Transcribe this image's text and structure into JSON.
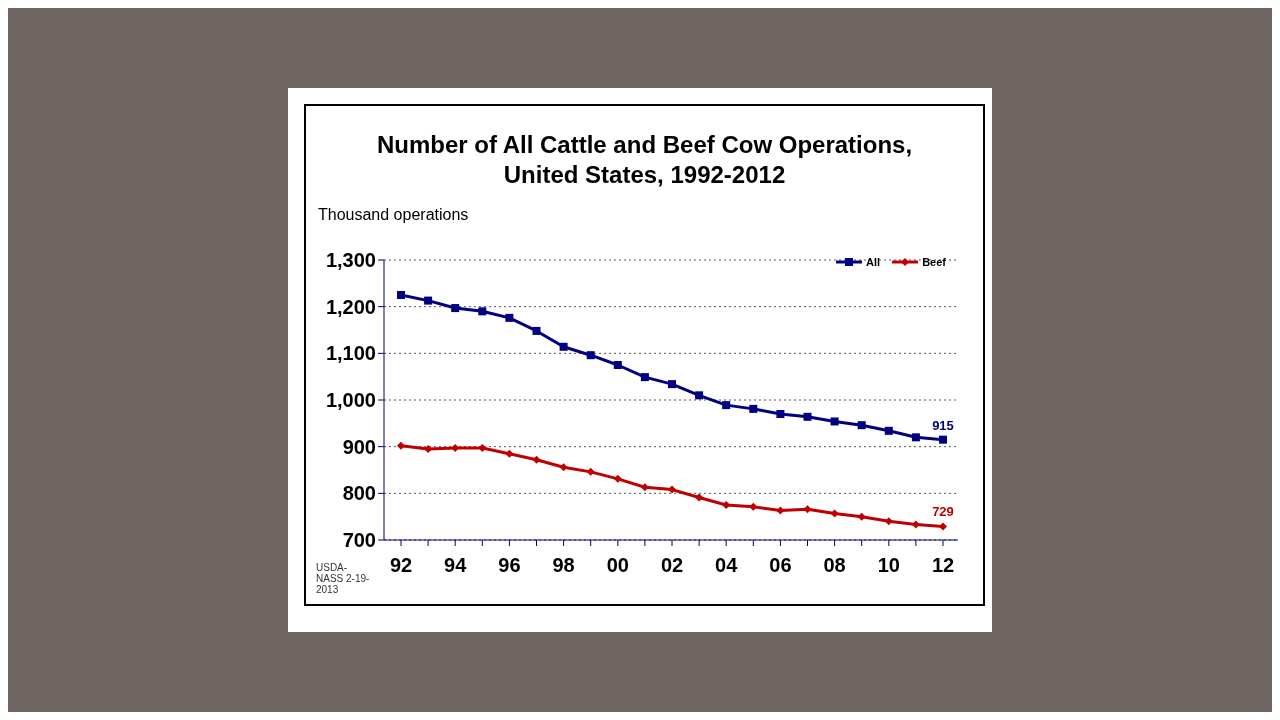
{
  "chart_data": {
    "type": "line",
    "title": "Number of All Cattle and Beef Cow Operations, United States, 1992-2012",
    "ylabel": "Thousand operations",
    "categories": [
      "92",
      null,
      "94",
      null,
      "96",
      null,
      "98",
      null,
      "00",
      null,
      "02",
      null,
      "04",
      null,
      "06",
      null,
      "08",
      null,
      "10",
      null,
      "12"
    ],
    "series": [
      {
        "name": "All",
        "color": "#000080",
        "marker": "square",
        "values": [
          1225,
          1213,
          1197,
          1190,
          1176,
          1148,
          1114,
          1096,
          1075,
          1049,
          1034,
          1010,
          989,
          981,
          970,
          964,
          954,
          946,
          934,
          920,
          915
        ],
        "value_labels": [
          null,
          null,
          null,
          null,
          null,
          null,
          null,
          null,
          null,
          null,
          null,
          null,
          null,
          null,
          null,
          null,
          null,
          null,
          null,
          null,
          "915"
        ]
      },
      {
        "name": "Beef",
        "color": "#c00000",
        "marker": "diamond",
        "values": [
          902,
          895,
          897,
          897,
          885,
          872,
          856,
          846,
          831,
          813,
          808,
          791,
          775,
          771,
          763,
          766,
          757,
          750,
          740,
          733,
          729
        ],
        "value_labels": [
          null,
          null,
          null,
          null,
          null,
          null,
          null,
          null,
          null,
          null,
          null,
          null,
          null,
          null,
          null,
          null,
          null,
          null,
          null,
          null,
          "729"
        ]
      }
    ],
    "ylim": [
      700,
      1300
    ],
    "yticks": [
      {
        "value": 700,
        "label": "700"
      },
      {
        "value": 800,
        "label": "800"
      },
      {
        "value": 900,
        "label": "900"
      },
      {
        "value": 1000,
        "label": "1,000"
      },
      {
        "value": 1100,
        "label": "1,100"
      },
      {
        "value": 1200,
        "label": "1,200"
      },
      {
        "value": 1300,
        "label": "1,300"
      }
    ],
    "grid": "y",
    "legend": "top right",
    "line_style": "solid",
    "annotations": [
      "USDA-NASS 2-19-2013"
    ]
  }
}
